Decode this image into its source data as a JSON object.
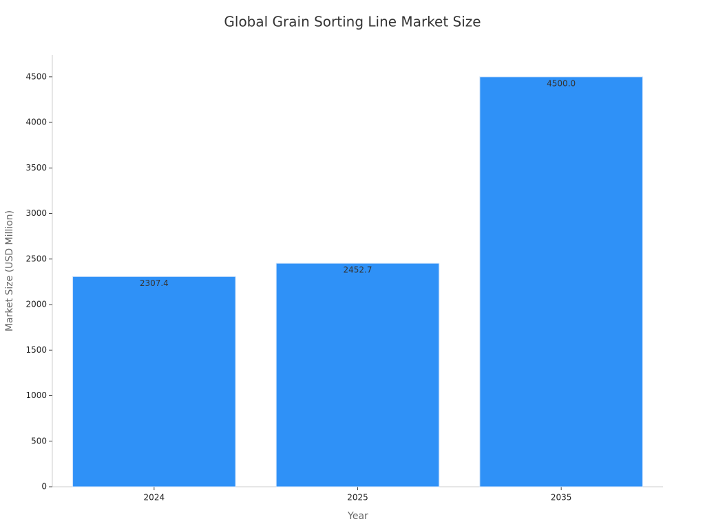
{
  "chart_data": {
    "type": "bar",
    "title": "Global Grain Sorting Line Market Size",
    "x_label": "Year",
    "y_label": "Market Size (USD Million)",
    "categories": [
      "2024",
      "2025",
      "2035"
    ],
    "values": [
      2307.4,
      2452.7,
      4500.0
    ],
    "value_labels": [
      "2307.4",
      "2452.7",
      "4500.0"
    ],
    "color": "#2f91f7",
    "ylim": [
      0,
      4740
    ],
    "yticks": [
      0,
      500,
      1000,
      1500,
      2000,
      2500,
      3000,
      3500,
      4000,
      4500
    ],
    "grid": false
  }
}
